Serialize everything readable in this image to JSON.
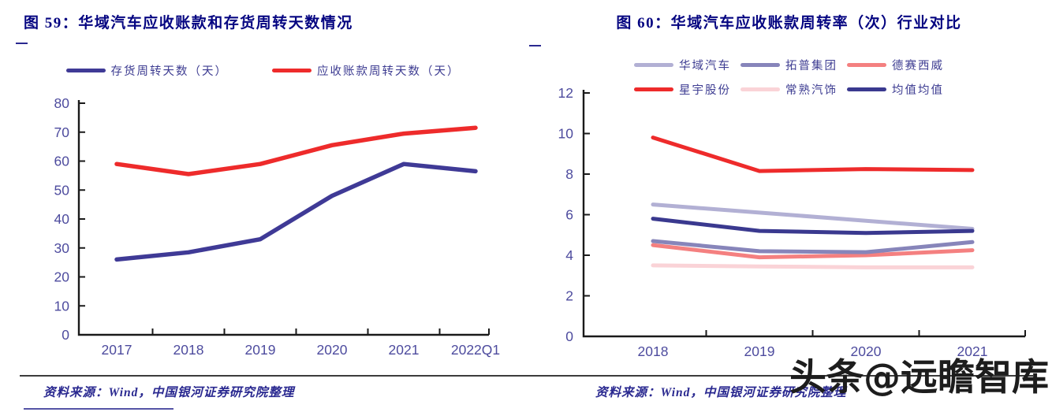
{
  "watermark": {
    "text": "头条@远瞻智库"
  },
  "colors": {
    "title": "#050581",
    "axis_label": "#4d4b9e",
    "axis_line": "#1a1a1a",
    "legend_text": "#3e3d92",
    "source_text": "#2a2990",
    "watermark": "#1d1d1d"
  },
  "chart_data": [
    {
      "type": "line",
      "title": "图 59：华域汽车应收账款和存货周转天数情况",
      "categories": [
        "2017",
        "2018",
        "2019",
        "2020",
        "2021",
        "2022Q1"
      ],
      "series": [
        {
          "name": "存货周转天数（天）",
          "color": "#3f3a96",
          "values": [
            26,
            28.5,
            33,
            48,
            59,
            56.5
          ]
        },
        {
          "name": "应收账款周转天数（天）",
          "color": "#ee2b2b",
          "values": [
            59,
            55.5,
            59,
            65.5,
            69.5,
            71.5
          ]
        }
      ],
      "ylim": [
        0,
        80
      ],
      "ytick": 10,
      "grid": false,
      "legend_position": "top",
      "source": "资料来源：Wind，中国银河证券研究院整理"
    },
    {
      "type": "line",
      "title": "图 60：华域汽车应收账款周转率（次）行业对比",
      "categories": [
        "2018",
        "2019",
        "2020",
        "2021"
      ],
      "series": [
        {
          "name": "华域汽车",
          "color": "#b2b0d4",
          "values": [
            6.5,
            6.1,
            5.7,
            5.3
          ]
        },
        {
          "name": "拓普集团",
          "color": "#8785ba",
          "values": [
            4.7,
            4.2,
            4.15,
            4.65
          ]
        },
        {
          "name": "德赛西威",
          "color": "#f48080",
          "values": [
            4.5,
            3.9,
            4.0,
            4.25
          ]
        },
        {
          "name": "星宇股份",
          "color": "#ee2b2b",
          "values": [
            9.8,
            8.15,
            8.25,
            8.2
          ]
        },
        {
          "name": "常熟汽饰",
          "color": "#fad3d7",
          "values": [
            3.5,
            3.45,
            3.4,
            3.4
          ]
        },
        {
          "name": "均值均值",
          "color": "#3a398f",
          "values": [
            5.8,
            5.2,
            5.1,
            5.2
          ]
        }
      ],
      "ylim": [
        0,
        12
      ],
      "ytick": 2,
      "grid": false,
      "legend_position": "top",
      "source": "资料来源：Wind，中国银河证券研究院整理"
    }
  ]
}
